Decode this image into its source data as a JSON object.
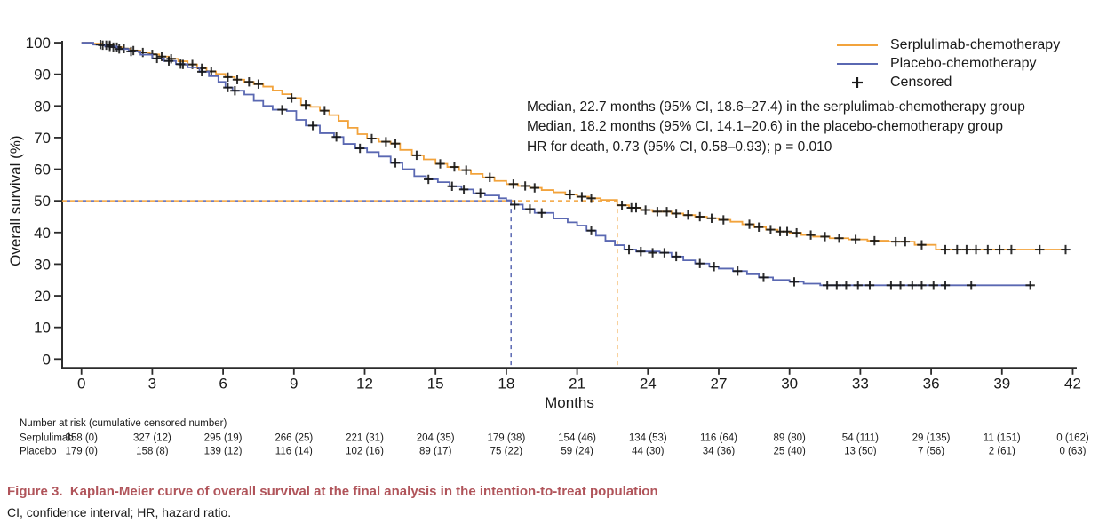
{
  "figure": {
    "caption_title": "Figure 3.  Kaplan-Meier curve of overall survival at the final analysis in the intention-to-treat population",
    "caption_note": "CI, confidence interval; HR, hazard ratio.",
    "caption_color": "#B0545A"
  },
  "annotation": {
    "line1": "Median, 22.7 months (95% CI, 18.6–27.4) in the serplulimab-chemotherapy group",
    "line2": "Median, 18.2 months (95% CI, 14.1–20.6) in the placebo-chemotherapy group",
    "line3": "HR for death, 0.73 (95% CI, 0.58–0.93); p = 0.010"
  },
  "legend": {
    "items": [
      {
        "label": "Serplulimab-chemotherapy",
        "type": "line",
        "color": "#F2A33C"
      },
      {
        "label": "Placebo-chemotherapy",
        "type": "line",
        "color": "#5A68B2"
      },
      {
        "label": "Censored",
        "type": "plus",
        "color": "#1a1a1a"
      }
    ]
  },
  "chart_data": {
    "type": "line",
    "subtype": "kaplan-meier-step",
    "xlabel": "Months",
    "ylabel": "Overall survival (%)",
    "xlim": [
      0,
      42
    ],
    "ylim": [
      0,
      100
    ],
    "x_ticks": [
      0,
      3,
      6,
      9,
      12,
      15,
      18,
      21,
      24,
      27,
      30,
      33,
      36,
      39,
      42
    ],
    "y_ticks": [
      0,
      10,
      20,
      30,
      40,
      50,
      60,
      70,
      80,
      90,
      100
    ],
    "grid": false,
    "legend_position": "top-right",
    "reference": {
      "survival_pct": 50,
      "serplulimab_median_months": 22.7,
      "placebo_median_months": 18.2
    },
    "series": [
      {
        "name": "Serplulimab-chemotherapy",
        "color": "#F2A33C",
        "points": [
          [
            0,
            100
          ],
          [
            0.4,
            99.7
          ],
          [
            0.9,
            99.2
          ],
          [
            1.3,
            98.6
          ],
          [
            1.7,
            98.1
          ],
          [
            2.1,
            97.5
          ],
          [
            2.5,
            96.9
          ],
          [
            2.9,
            96.3
          ],
          [
            3.3,
            95.6
          ],
          [
            3.7,
            94.9
          ],
          [
            4.1,
            94.1
          ],
          [
            4.5,
            93.1
          ],
          [
            4.9,
            91.9
          ],
          [
            5.3,
            90.9
          ],
          [
            5.7,
            90.1
          ],
          [
            6.1,
            89.1
          ],
          [
            6.5,
            88.3
          ],
          [
            6.9,
            87.6
          ],
          [
            7.3,
            86.9
          ],
          [
            7.7,
            86.1
          ],
          [
            8.1,
            84.9
          ],
          [
            8.5,
            83.7
          ],
          [
            8.9,
            82.5
          ],
          [
            9.3,
            80.3
          ],
          [
            9.7,
            79.7
          ],
          [
            10.1,
            78.5
          ],
          [
            10.5,
            77.1
          ],
          [
            10.9,
            75.3
          ],
          [
            11.3,
            73.1
          ],
          [
            11.7,
            71.1
          ],
          [
            12.1,
            69.7
          ],
          [
            12.6,
            68.7
          ],
          [
            13.1,
            68.1
          ],
          [
            13.5,
            66.1
          ],
          [
            14,
            64.4
          ],
          [
            14.5,
            63.1
          ],
          [
            15,
            61.7
          ],
          [
            15.5,
            60.7
          ],
          [
            16,
            59.7
          ],
          [
            16.5,
            58.5
          ],
          [
            17,
            57.4
          ],
          [
            17.5,
            56.3
          ],
          [
            18,
            55.3
          ],
          [
            18.5,
            54.7
          ],
          [
            19,
            54.1
          ],
          [
            19.5,
            53.4
          ],
          [
            20,
            52.7
          ],
          [
            20.5,
            52
          ],
          [
            21,
            51.3
          ],
          [
            21.5,
            50.8
          ],
          [
            22,
            50.3
          ],
          [
            22.7,
            48.6
          ],
          [
            23.2,
            47.8
          ],
          [
            23.7,
            47.1
          ],
          [
            24.2,
            46.6
          ],
          [
            25,
            46
          ],
          [
            25.5,
            45.5
          ],
          [
            26,
            45
          ],
          [
            26.5,
            44.5
          ],
          [
            27,
            44
          ],
          [
            27.5,
            43.4
          ],
          [
            28,
            42.6
          ],
          [
            28.5,
            41.7
          ],
          [
            29,
            40.9
          ],
          [
            29.5,
            40.3
          ],
          [
            30,
            39.9
          ],
          [
            30.5,
            39.2
          ],
          [
            31,
            38.7
          ],
          [
            31.7,
            38.2
          ],
          [
            32.5,
            37.8
          ],
          [
            33.3,
            37.4
          ],
          [
            34.2,
            37.1
          ],
          [
            35.3,
            36.1
          ],
          [
            36.2,
            34.6
          ],
          [
            41.7,
            34.6
          ]
        ],
        "censored": [
          [
            0.9,
            99.2
          ],
          [
            1.05,
            99.2
          ],
          [
            1.2,
            99.2
          ],
          [
            1.35,
            98.6
          ],
          [
            1.5,
            98.6
          ],
          [
            1.8,
            98.1
          ],
          [
            2.2,
            97.5
          ],
          [
            2.6,
            96.9
          ],
          [
            3,
            96.3
          ],
          [
            3.4,
            95.6
          ],
          [
            3.8,
            94.9
          ],
          [
            4.3,
            93.1
          ],
          [
            4.7,
            93.1
          ],
          [
            5.1,
            91.9
          ],
          [
            5.5,
            90.9
          ],
          [
            6.2,
            89.1
          ],
          [
            6.6,
            88.3
          ],
          [
            7.1,
            87.6
          ],
          [
            7.5,
            86.9
          ],
          [
            8.9,
            82.5
          ],
          [
            9.5,
            80.3
          ],
          [
            10.3,
            78.5
          ],
          [
            12.3,
            69.7
          ],
          [
            12.9,
            68.7
          ],
          [
            13.3,
            68.1
          ],
          [
            14.2,
            64.4
          ],
          [
            15.2,
            61.7
          ],
          [
            15.8,
            60.7
          ],
          [
            16.3,
            59.7
          ],
          [
            17.3,
            57.4
          ],
          [
            18.3,
            55.3
          ],
          [
            18.8,
            54.7
          ],
          [
            19.2,
            54.1
          ],
          [
            20.7,
            52
          ],
          [
            21.2,
            51.3
          ],
          [
            21.6,
            50.8
          ],
          [
            22.9,
            48.6
          ],
          [
            23.3,
            47.8
          ],
          [
            23.5,
            47.8
          ],
          [
            23.9,
            47.1
          ],
          [
            24.4,
            46.6
          ],
          [
            24.8,
            46.6
          ],
          [
            25.2,
            46
          ],
          [
            25.7,
            45.5
          ],
          [
            26.2,
            45
          ],
          [
            26.7,
            44.5
          ],
          [
            27.2,
            44
          ],
          [
            28.3,
            42.6
          ],
          [
            28.7,
            41.7
          ],
          [
            29.2,
            40.9
          ],
          [
            29.6,
            40.3
          ],
          [
            29.9,
            40.3
          ],
          [
            30.3,
            39.9
          ],
          [
            30.9,
            39.2
          ],
          [
            31.5,
            38.7
          ],
          [
            32.1,
            38.2
          ],
          [
            32.8,
            37.8
          ],
          [
            33.6,
            37.4
          ],
          [
            34.5,
            37.1
          ],
          [
            34.9,
            37.1
          ],
          [
            35.6,
            36.1
          ],
          [
            36.6,
            34.6
          ],
          [
            37.1,
            34.6
          ],
          [
            37.5,
            34.6
          ],
          [
            37.9,
            34.6
          ],
          [
            38.4,
            34.6
          ],
          [
            38.9,
            34.6
          ],
          [
            39.4,
            34.6
          ],
          [
            40.6,
            34.6
          ],
          [
            41.7,
            34.6
          ]
        ]
      },
      {
        "name": "Placebo-chemotherapy",
        "color": "#5A68B2",
        "points": [
          [
            0,
            100
          ],
          [
            0.5,
            99.4
          ],
          [
            1,
            98.8
          ],
          [
            1.5,
            98
          ],
          [
            2,
            97.2
          ],
          [
            2.5,
            96.2
          ],
          [
            3,
            95
          ],
          [
            3.5,
            94.2
          ],
          [
            4,
            93.2
          ],
          [
            4.5,
            92.2
          ],
          [
            5,
            90.8
          ],
          [
            5.4,
            89.4
          ],
          [
            5.8,
            87.6
          ],
          [
            6.1,
            85.8
          ],
          [
            6.4,
            84.8
          ],
          [
            6.9,
            83.6
          ],
          [
            7.3,
            81.6
          ],
          [
            7.7,
            80
          ],
          [
            8.1,
            78.8
          ],
          [
            8.7,
            78.4
          ],
          [
            9.1,
            75.6
          ],
          [
            9.5,
            73.8
          ],
          [
            10.1,
            71.4
          ],
          [
            10.7,
            70.2
          ],
          [
            11.1,
            68
          ],
          [
            11.6,
            66.6
          ],
          [
            12.1,
            65.4
          ],
          [
            12.6,
            64
          ],
          [
            13.1,
            62
          ],
          [
            13.6,
            60
          ],
          [
            14.1,
            57.8
          ],
          [
            14.6,
            56.8
          ],
          [
            15.1,
            55.9
          ],
          [
            15.6,
            54.6
          ],
          [
            16.1,
            53.6
          ],
          [
            16.6,
            52.4
          ],
          [
            17.1,
            51.7
          ],
          [
            17.7,
            50.8
          ],
          [
            18,
            50.2
          ],
          [
            18.2,
            48.8
          ],
          [
            18.7,
            47.4
          ],
          [
            19.2,
            46.2
          ],
          [
            20,
            44.4
          ],
          [
            20.6,
            43.2
          ],
          [
            21,
            42.2
          ],
          [
            21.4,
            40.6
          ],
          [
            21.8,
            39
          ],
          [
            22.2,
            37.4
          ],
          [
            22.6,
            36
          ],
          [
            23,
            34.6
          ],
          [
            23.5,
            34
          ],
          [
            24.5,
            33.6
          ],
          [
            25,
            32.4
          ],
          [
            25.5,
            31.2
          ],
          [
            26,
            30.2
          ],
          [
            26.6,
            29.2
          ],
          [
            27,
            28.6
          ],
          [
            27.6,
            27.8
          ],
          [
            28.2,
            26.8
          ],
          [
            28.7,
            25.8
          ],
          [
            29.3,
            25
          ],
          [
            30,
            24.4
          ],
          [
            30.6,
            23.8
          ],
          [
            31.3,
            23.3
          ],
          [
            40.2,
            23.3
          ]
        ],
        "censored": [
          [
            0.8,
            99.4
          ],
          [
            1.2,
            98.8
          ],
          [
            1.6,
            98
          ],
          [
            2.1,
            97.2
          ],
          [
            3.2,
            95
          ],
          [
            3.7,
            94.2
          ],
          [
            4.2,
            93.2
          ],
          [
            5.1,
            90.8
          ],
          [
            6.2,
            85.8
          ],
          [
            6.5,
            84.8
          ],
          [
            8.5,
            78.8
          ],
          [
            9.8,
            73.8
          ],
          [
            10.8,
            70.2
          ],
          [
            11.8,
            66.6
          ],
          [
            13.3,
            62
          ],
          [
            14.7,
            56.8
          ],
          [
            15.7,
            54.6
          ],
          [
            16.2,
            53.6
          ],
          [
            16.9,
            52.4
          ],
          [
            18.35,
            48.8
          ],
          [
            19,
            47.4
          ],
          [
            19.5,
            46.2
          ],
          [
            21.6,
            40.6
          ],
          [
            23.2,
            34.6
          ],
          [
            23.7,
            34
          ],
          [
            24.2,
            33.6
          ],
          [
            24.7,
            33.6
          ],
          [
            25.2,
            32.4
          ],
          [
            26.2,
            30.2
          ],
          [
            26.8,
            29.2
          ],
          [
            27.8,
            27.8
          ],
          [
            28.9,
            25.8
          ],
          [
            30.2,
            24.4
          ],
          [
            31.6,
            23.3
          ],
          [
            32,
            23.3
          ],
          [
            32.4,
            23.3
          ],
          [
            32.9,
            23.3
          ],
          [
            33.4,
            23.3
          ],
          [
            34.3,
            23.3
          ],
          [
            34.7,
            23.3
          ],
          [
            35.2,
            23.3
          ],
          [
            35.6,
            23.3
          ],
          [
            36.1,
            23.3
          ],
          [
            36.6,
            23.3
          ],
          [
            37.7,
            23.3
          ],
          [
            40.2,
            23.3
          ]
        ]
      }
    ]
  },
  "risk_table": {
    "header": "Number at risk (cumulative censored number)",
    "months": [
      0,
      3,
      6,
      9,
      12,
      15,
      18,
      21,
      24,
      27,
      30,
      33,
      36,
      39,
      42
    ],
    "rows": [
      {
        "label": "Serplulimab",
        "values": [
          "358 (0)",
          "327 (12)",
          "295 (19)",
          "266 (25)",
          "221 (31)",
          "204 (35)",
          "179 (38)",
          "154 (46)",
          "134 (53)",
          "116 (64)",
          "89 (80)",
          "54 (111)",
          "29 (135)",
          "11 (151)",
          "0 (162)"
        ]
      },
      {
        "label": "Placebo",
        "values": [
          "179 (0)",
          "158 (8)",
          "139 (12)",
          "116 (14)",
          "102 (16)",
          "89 (17)",
          "75 (22)",
          "59 (24)",
          "44 (30)",
          "34 (36)",
          "25 (40)",
          "13 (50)",
          "7 (56)",
          "2 (61)",
          "0 (63)"
        ]
      }
    ]
  }
}
